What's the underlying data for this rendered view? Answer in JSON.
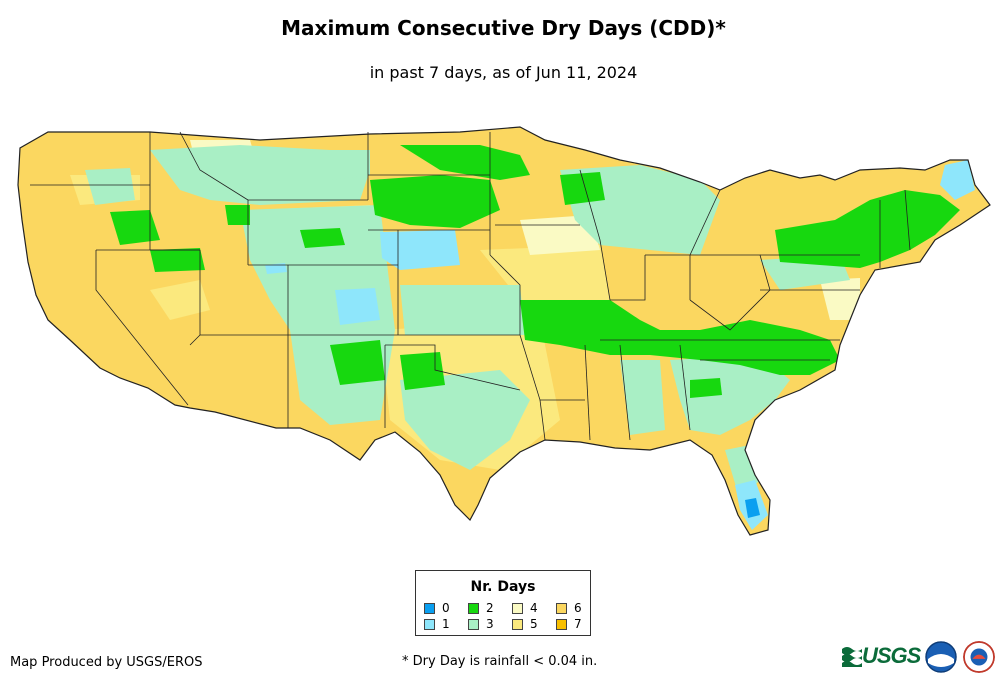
{
  "header": {
    "title": "Maximum Consecutive Dry Days (CDD)*",
    "subtitle": "in past 7 days, as of Jun 11, 2024"
  },
  "legend": {
    "title": "Nr. Days",
    "items": [
      {
        "label": "0",
        "color": "#0a9ff0"
      },
      {
        "label": "1",
        "color": "#8ee6fb"
      },
      {
        "label": "2",
        "color": "#17d80f"
      },
      {
        "label": "3",
        "color": "#a9efc5"
      },
      {
        "label": "4",
        "color": "#fafac4"
      },
      {
        "label": "5",
        "color": "#fbe97e"
      },
      {
        "label": "6",
        "color": "#fbd760"
      },
      {
        "label": "7",
        "color": "#f8bf00"
      }
    ]
  },
  "footer": {
    "credit": "Map Produced by USGS/EROS",
    "note": "* Dry Day is rainfall < 0.04 in."
  },
  "logos": {
    "usgs": "USGS",
    "usgs_icon": "usgs-wave-icon",
    "noaa_icon": "noaa-icon",
    "nws_icon": "nws-icon"
  }
}
